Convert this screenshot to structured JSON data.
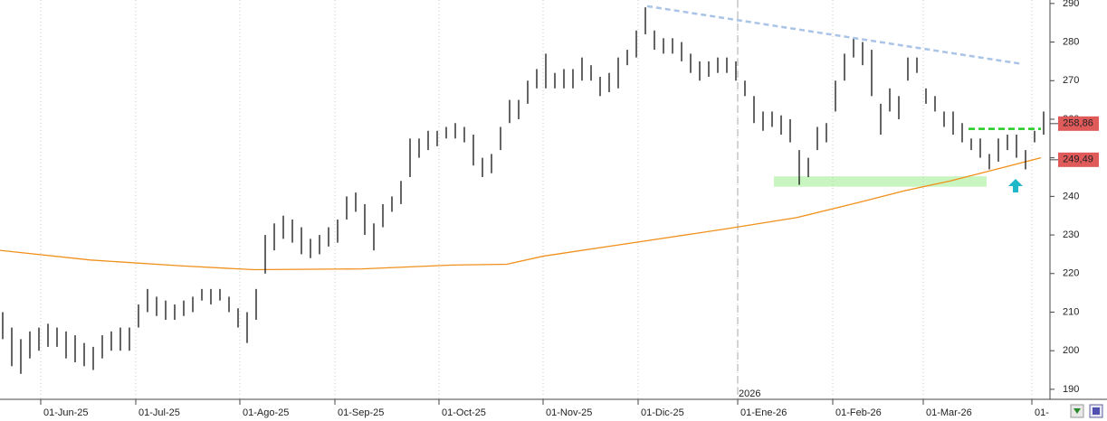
{
  "chart_data": {
    "type": "ohlc",
    "xlim": [
      0,
      232
    ],
    "ylim": [
      187.4,
      290.9
    ],
    "yticks": [
      190,
      200,
      210,
      220,
      230,
      240,
      250,
      260,
      270,
      280,
      290
    ],
    "xticks": [
      {
        "value": 9,
        "label": "01-Jun-25"
      },
      {
        "value": 30,
        "label": "01-Jul-25"
      },
      {
        "value": 53,
        "label": "01-Ago-25"
      },
      {
        "value": 74,
        "label": "01-Sep-25"
      },
      {
        "value": 97,
        "label": "01-Oct-25"
      },
      {
        "value": 120,
        "label": "01-Nov-25"
      },
      {
        "value": 141,
        "label": "01-Dic-25"
      },
      {
        "value": 163,
        "label": "01-Ene-26"
      },
      {
        "value": 184,
        "label": "01-Feb-26"
      },
      {
        "value": 204,
        "label": "01-Mar-26"
      },
      {
        "value": 228,
        "label": "01-"
      }
    ],
    "grid": "x",
    "bars": {
      "color": "#000000",
      "x": [
        0,
        2,
        4,
        6,
        8,
        10,
        12,
        14,
        16,
        18,
        20,
        22,
        24,
        26,
        28,
        30,
        32,
        34,
        36,
        38,
        40,
        42,
        44,
        46,
        48,
        50,
        52,
        54,
        56,
        58,
        60,
        62,
        64,
        66,
        68,
        70,
        72,
        74,
        76,
        78,
        80,
        82,
        84,
        86,
        88,
        90,
        92,
        94,
        96,
        98,
        100,
        102,
        104,
        106,
        108,
        110,
        112,
        114,
        116,
        118,
        120,
        122,
        124,
        126,
        128,
        130,
        132,
        134,
        136,
        138,
        140,
        142,
        144,
        146,
        148,
        150,
        152,
        154,
        156,
        158,
        160,
        162,
        164,
        166,
        168,
        170,
        172,
        174,
        176,
        178,
        180,
        182,
        184,
        186,
        188,
        190,
        192,
        194,
        196,
        198,
        200,
        202,
        204,
        206,
        208,
        210,
        212,
        214,
        216,
        218,
        220,
        222,
        224,
        226,
        228,
        230
      ],
      "high": [
        210,
        206,
        203,
        205,
        206,
        207,
        206,
        205,
        204,
        202,
        201,
        204,
        205,
        206,
        206,
        212,
        216,
        214,
        213,
        212,
        213,
        214,
        216,
        216,
        216,
        214,
        211,
        210,
        216,
        230,
        233,
        235,
        234,
        232,
        229,
        230,
        232,
        234,
        240,
        241,
        238,
        233,
        238,
        240,
        244,
        255,
        255,
        257,
        257,
        258,
        259,
        258,
        256,
        250,
        251,
        258,
        265,
        265,
        270,
        273,
        277,
        272,
        273,
        273,
        276,
        274,
        271,
        272,
        276,
        278,
        283,
        289,
        283,
        281,
        281,
        280,
        277,
        275,
        275,
        276,
        276,
        275,
        270,
        266,
        262,
        262,
        261,
        260,
        252,
        250,
        258,
        259,
        270,
        277,
        281,
        280,
        278,
        264,
        268,
        266,
        276,
        276,
        268,
        266,
        262,
        262,
        259,
        255,
        255,
        251,
        255,
        256,
        256,
        252,
        257,
        262
      ],
      "low": [
        203,
        196,
        194,
        198,
        200,
        201,
        201,
        198,
        197,
        196,
        195,
        198,
        200,
        200,
        200,
        206,
        210,
        209,
        208,
        208,
        209,
        210,
        213,
        212,
        213,
        210,
        206,
        202,
        208,
        220,
        226,
        229,
        228,
        225,
        224,
        225,
        227,
        228,
        234,
        236,
        230,
        226,
        232,
        236,
        238,
        245,
        250,
        252,
        253,
        255,
        255,
        254,
        248,
        245,
        246,
        252,
        259,
        260,
        264,
        268,
        268,
        268,
        268,
        268,
        270,
        270,
        266,
        267,
        268,
        274,
        276,
        282,
        278,
        277,
        277,
        275,
        272,
        270,
        271,
        272,
        272,
        270,
        266,
        259,
        257,
        258,
        256,
        254,
        243,
        245,
        252,
        254,
        262,
        270,
        276,
        274,
        266,
        256,
        262,
        260,
        270,
        272,
        264,
        262,
        258,
        256,
        254,
        252,
        250,
        247,
        249,
        252,
        250,
        247,
        254,
        256
      ]
    },
    "moving_average": {
      "color": "#f0901c",
      "x": [
        0,
        20,
        40,
        56,
        80,
        100,
        112,
        120,
        140,
        160,
        176,
        190,
        200,
        210,
        220,
        230
      ],
      "values": [
        226,
        223.5,
        222,
        221,
        221.2,
        222.2,
        222.4,
        224.5,
        228,
        231.5,
        234.5,
        238.5,
        241.5,
        244,
        247,
        250
      ]
    },
    "trendline": {
      "color": "#a9c4e6",
      "x": [
        143,
        226
      ],
      "values": [
        289.3,
        274.3
      ]
    },
    "resistance": {
      "color": "#22cc22",
      "x": [
        214,
        230
      ],
      "values": [
        257.5,
        257.5
      ]
    },
    "support_zone": {
      "color": "#c8f5c0",
      "x": [
        171,
        218
      ],
      "range": [
        242.5,
        245.2
      ]
    },
    "price_labels": [
      {
        "value": 258.86,
        "label": "258,86"
      },
      {
        "value": 249.49,
        "label": "249,49"
      }
    ],
    "year_marker": {
      "x": 163,
      "label": "2026"
    }
  }
}
